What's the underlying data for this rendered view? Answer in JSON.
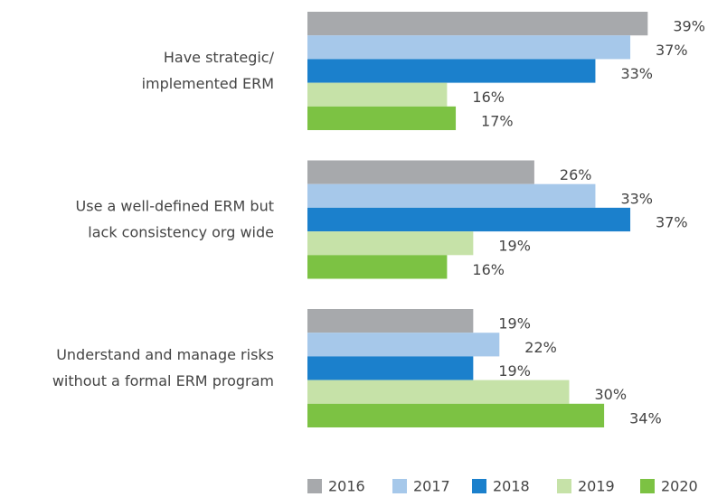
{
  "chart_data": {
    "type": "hbar",
    "categories": [
      [
        "Have strategic/",
        "implemented ERM"
      ],
      [
        "Use a well-defined ERM but",
        "lack consistency org wide"
      ],
      [
        "Understand and manage risks",
        "without a formal ERM program"
      ]
    ],
    "series": [
      {
        "name": "2016",
        "color": "#a7a9ac",
        "values": [
          39,
          26,
          19
        ],
        "value_labels": [
          "39%",
          "26%",
          "19%"
        ]
      },
      {
        "name": "2017",
        "color": "#a6c8ea",
        "values": [
          37,
          33,
          22
        ],
        "value_labels": [
          "37%",
          "33%",
          "22%"
        ]
      },
      {
        "name": "2018",
        "color": "#1b80cc",
        "values": [
          33,
          37,
          19
        ],
        "value_labels": [
          "33%",
          "37%",
          "19%"
        ]
      },
      {
        "name": "2019",
        "color": "#c6e2a8",
        "values": [
          16,
          19,
          30
        ],
        "value_labels": [
          "16%",
          "19%",
          "30%"
        ]
      },
      {
        "name": "2020",
        "color": "#7cc243",
        "values": [
          17,
          16,
          34
        ],
        "value_labels": [
          "17%",
          "16%",
          "34%"
        ]
      }
    ],
    "legend": "bottom"
  }
}
